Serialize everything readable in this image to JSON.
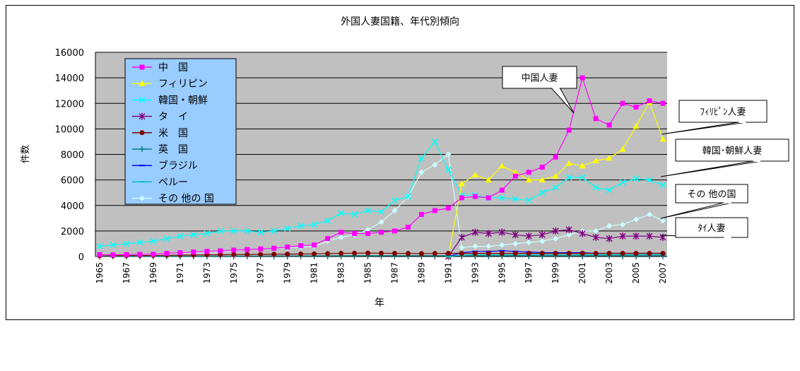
{
  "chart_data": {
    "type": "line",
    "title": "外国人妻国籍、年代別傾向",
    "xlabel": "年",
    "ylabel": "件数",
    "ylim": [
      0,
      16000
    ],
    "yticks": [
      0,
      2000,
      4000,
      6000,
      8000,
      10000,
      12000,
      14000,
      16000
    ],
    "ytick_labels": [
      "0",
      "2000",
      "4000",
      "6000",
      "8000",
      "10000",
      "12000",
      "14000",
      "16000"
    ],
    "x": [
      1965,
      1966,
      1967,
      1968,
      1969,
      1970,
      1971,
      1972,
      1973,
      1974,
      1975,
      1976,
      1977,
      1978,
      1979,
      1980,
      1981,
      1982,
      1983,
      1984,
      1985,
      1986,
      1987,
      1988,
      1989,
      1990,
      1991,
      1992,
      1993,
      1994,
      1995,
      1996,
      1997,
      1998,
      1999,
      2000,
      2001,
      2002,
      2003,
      2004,
      2005,
      2006,
      2007
    ],
    "xtick_labels": [
      "1965",
      "1967",
      "1969",
      "1971",
      "1973",
      "1975",
      "1977",
      "1979",
      "1981",
      "1983",
      "1985",
      "1987",
      "1989",
      "1991",
      "1993",
      "1995",
      "1997",
      "1999",
      "2001",
      "2003",
      "2005",
      "2007"
    ],
    "plot_background": "#c0c0c0",
    "grid": true,
    "legend_position": "top-left",
    "legend_background": "#99ccff",
    "series": [
      {
        "name": "中　国",
        "color": "#ff00ff",
        "marker": "square",
        "values": [
          150,
          130,
          150,
          170,
          180,
          250,
          300,
          350,
          400,
          450,
          500,
          550,
          600,
          650,
          750,
          850,
          900,
          1400,
          1900,
          1800,
          1800,
          1900,
          2000,
          2300,
          3300,
          3600,
          3800,
          4600,
          4700,
          4600,
          5200,
          6300,
          6600,
          7000,
          7800,
          9900,
          14000,
          10800,
          10300,
          12000,
          11700,
          12200,
          12000
        ]
      },
      {
        "name": "フィリピン",
        "color": "#ffff00",
        "marker": "triangle",
        "values": [
          null,
          null,
          null,
          null,
          null,
          null,
          null,
          null,
          null,
          null,
          null,
          null,
          null,
          null,
          null,
          null,
          null,
          null,
          null,
          null,
          null,
          null,
          null,
          null,
          null,
          null,
          0,
          5700,
          6400,
          6000,
          7100,
          6600,
          6000,
          6000,
          6300,
          7300,
          7100,
          7500,
          7700,
          8400,
          10200,
          12100,
          9200
        ]
      },
      {
        "name": "韓国・朝鮮",
        "color": "#00ffff",
        "marker": "star",
        "values": [
          800,
          900,
          1000,
          1100,
          1200,
          1400,
          1600,
          1700,
          1800,
          2000,
          2000,
          2000,
          1900,
          2000,
          2200,
          2400,
          2500,
          2800,
          3400,
          3300,
          3600,
          3500,
          4400,
          4700,
          7700,
          9000,
          6800,
          4800,
          4800,
          4600,
          4600,
          4500,
          4400,
          5000,
          5400,
          6200,
          6200,
          5400,
          5200,
          5800,
          6100,
          6000,
          5600
        ]
      },
      {
        "name": "タ　イ",
        "color": "#800080",
        "marker": "asterisk",
        "values": [
          null,
          null,
          null,
          null,
          null,
          null,
          null,
          null,
          null,
          null,
          null,
          null,
          null,
          null,
          null,
          null,
          null,
          null,
          null,
          null,
          null,
          null,
          null,
          null,
          null,
          null,
          0,
          1500,
          1900,
          1800,
          1900,
          1700,
          1600,
          1700,
          2000,
          2100,
          1800,
          1500,
          1400,
          1600,
          1600,
          1600,
          1500
        ]
      },
      {
        "name": "米　国",
        "color": "#800000",
        "marker": "circle",
        "values": [
          50,
          60,
          70,
          80,
          90,
          100,
          110,
          120,
          130,
          140,
          150,
          160,
          170,
          180,
          190,
          200,
          210,
          230,
          250,
          260,
          270,
          260,
          250,
          240,
          230,
          240,
          250,
          250,
          250,
          250,
          250,
          250,
          250,
          250,
          250,
          250,
          250,
          250,
          250,
          250,
          250,
          250,
          250
        ]
      },
      {
        "name": "英　国",
        "color": "#008080",
        "marker": "plus",
        "values": [
          20,
          20,
          20,
          20,
          25,
          25,
          30,
          30,
          30,
          35,
          35,
          40,
          40,
          45,
          45,
          50,
          50,
          55,
          55,
          60,
          60,
          60,
          60,
          60,
          60,
          60,
          60,
          60,
          60,
          60,
          60,
          60,
          60,
          60,
          60,
          60,
          60,
          60,
          60,
          60,
          60,
          60,
          60
        ]
      },
      {
        "name": "ブラジル",
        "color": "#0000ff",
        "marker": "dash",
        "values": [
          null,
          null,
          null,
          null,
          null,
          null,
          null,
          null,
          null,
          null,
          null,
          null,
          null,
          null,
          null,
          null,
          null,
          null,
          null,
          null,
          null,
          null,
          null,
          null,
          null,
          null,
          0,
          300,
          400,
          400,
          450,
          400,
          350,
          300,
          300,
          300,
          300,
          250,
          250,
          250,
          250,
          250,
          250
        ]
      },
      {
        "name": "ペルー",
        "color": "#00c0c0",
        "marker": "dash",
        "values": [
          null,
          null,
          null,
          null,
          null,
          null,
          null,
          null,
          null,
          null,
          null,
          null,
          null,
          null,
          null,
          null,
          null,
          null,
          null,
          null,
          null,
          null,
          null,
          null,
          null,
          null,
          0,
          100,
          150,
          150,
          150,
          150,
          150,
          150,
          150,
          150,
          150,
          150,
          150,
          150,
          150,
          150,
          150
        ]
      },
      {
        "name": "その 他の 国",
        "color": "#ccffff",
        "marker": "diamond",
        "values": [
          100,
          100,
          110,
          120,
          150,
          200,
          250,
          300,
          350,
          400,
          450,
          550,
          600,
          650,
          700,
          750,
          800,
          1200,
          1500,
          1700,
          2100,
          2700,
          3600,
          4700,
          6600,
          7200,
          8000,
          700,
          800,
          800,
          900,
          1000,
          1100,
          1200,
          1400,
          1700,
          2000,
          2000,
          2400,
          2500,
          2900,
          3300,
          2800
        ]
      }
    ],
    "annotations": [
      {
        "text": "中国人妻",
        "series": "中　国"
      },
      {
        "text": "ﾌｨﾘﾋﾟﾝ人妻",
        "series": "フィリピン"
      },
      {
        "text": "韓国･朝鮮人妻",
        "series": "韓国・朝鮮"
      },
      {
        "text": "その 他の国",
        "series": "その 他の 国"
      },
      {
        "text": "ﾀｲ人妻",
        "series": "タ　イ"
      }
    ]
  }
}
